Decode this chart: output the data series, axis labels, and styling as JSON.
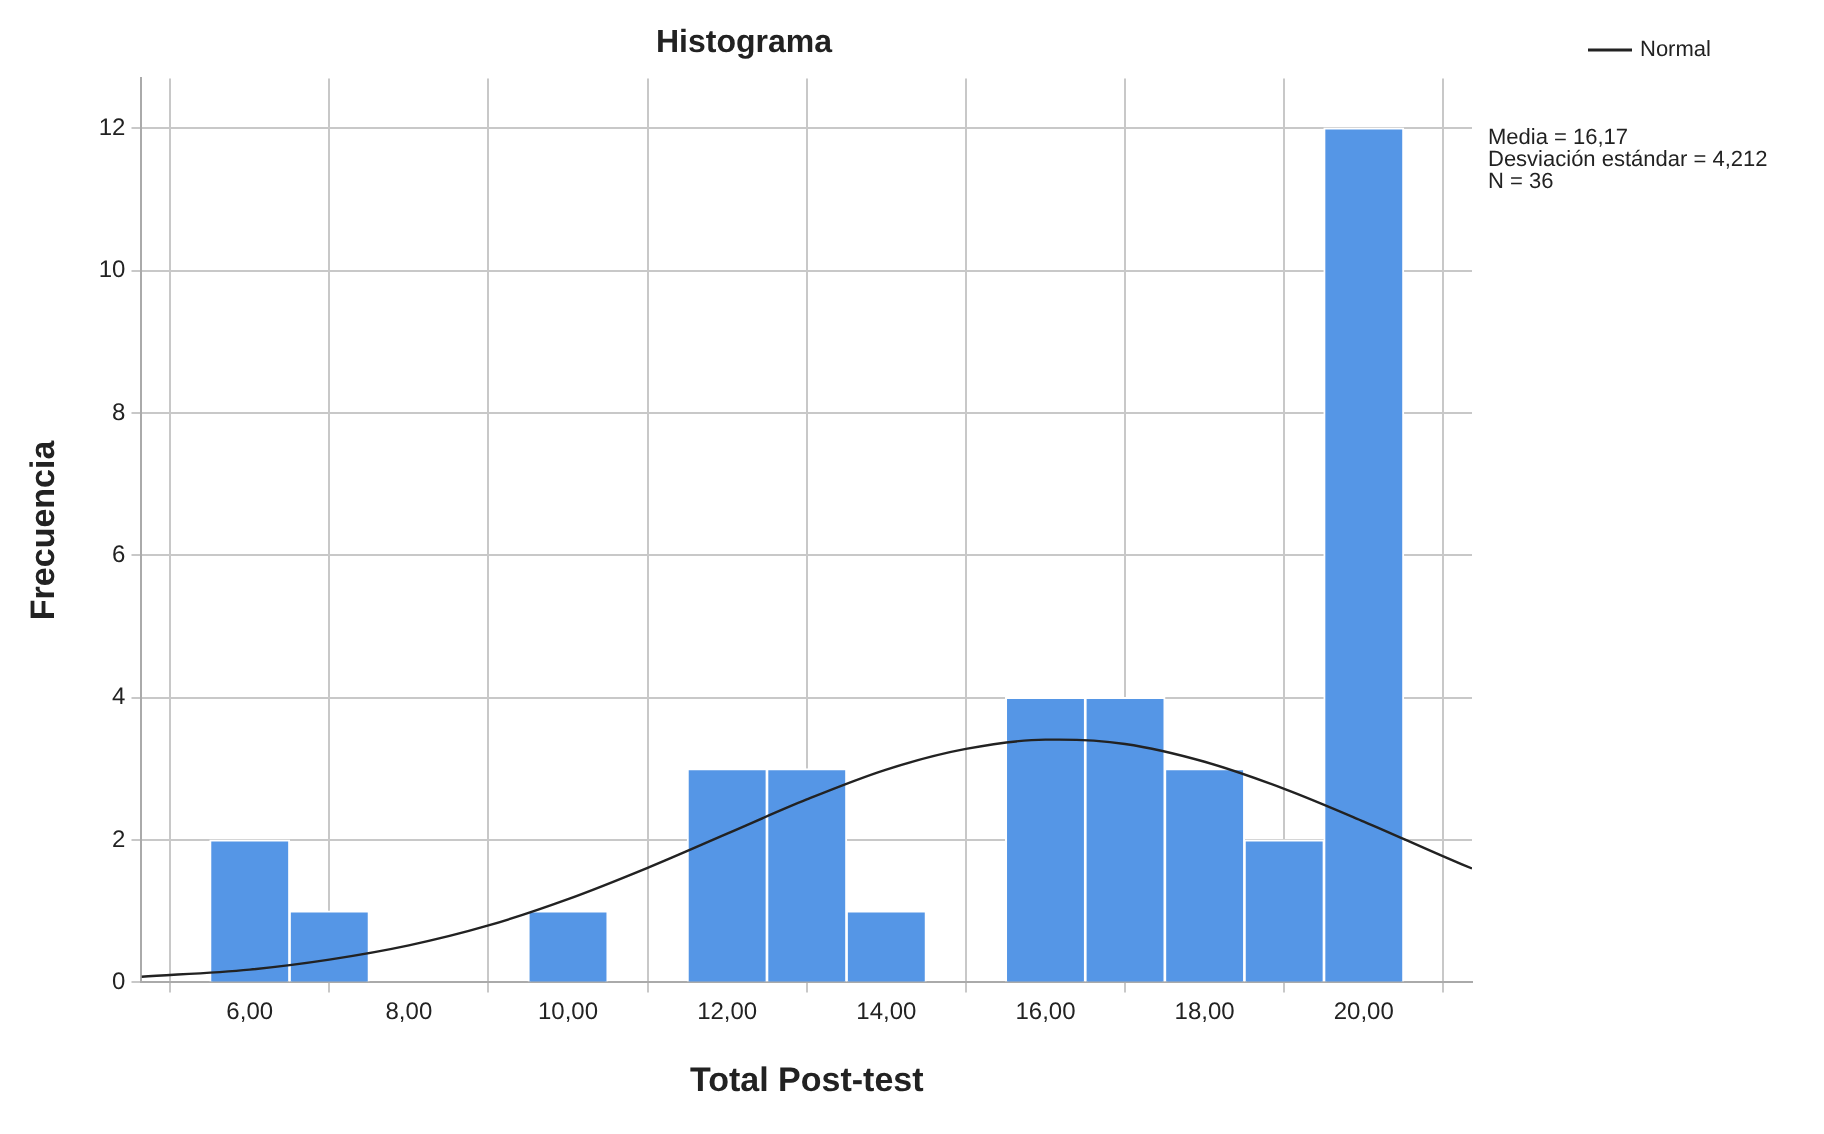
{
  "chart_data": {
    "type": "histogram",
    "title": "Histograma",
    "xlabel": "Total Post-test",
    "ylabel": "Frecuencia",
    "bins": [
      5.5,
      6.5,
      7.5,
      8.5,
      9.5,
      10.5,
      11.5,
      12.5,
      13.5,
      14.5,
      15.5,
      16.5,
      17.5,
      18.5,
      19.5,
      20.5
    ],
    "values": [
      2,
      1,
      0,
      0,
      1,
      0,
      3,
      3,
      1,
      0,
      4,
      4,
      3,
      2,
      12
    ],
    "color": "#5596e6",
    "series": [
      {
        "name": "Normal",
        "type": "line",
        "color": "#222222",
        "x": [
          4.64,
          6,
          7,
          8,
          9,
          10,
          11,
          12,
          13,
          14,
          15,
          16,
          16.17,
          17,
          18,
          19,
          20,
          21,
          21.36
        ],
        "values": [
          0.08,
          0.18,
          0.32,
          0.52,
          0.8,
          1.17,
          1.61,
          2.09,
          2.57,
          2.99,
          3.28,
          3.41,
          3.41,
          3.35,
          3.1,
          2.72,
          2.26,
          1.77,
          1.6
        ]
      }
    ],
    "xlim": [
      4.64,
      21.36
    ],
    "xticks": [
      {
        "value": 6,
        "label": "6,00"
      },
      {
        "value": 8,
        "label": "8,00"
      },
      {
        "value": 10,
        "label": "10,00"
      },
      {
        "value": 12,
        "label": "12,00"
      },
      {
        "value": 14,
        "label": "14,00"
      },
      {
        "value": 16,
        "label": "16,00"
      },
      {
        "value": 18,
        "label": "18,00"
      },
      {
        "value": 20,
        "label": "20,00"
      }
    ],
    "ylim": [
      0,
      12.7
    ],
    "yticks": [
      0,
      2,
      4,
      6,
      8,
      10,
      12
    ],
    "grid": true,
    "legend": "top right",
    "annotations": [
      "Media = 16,17",
      "Desviación estándar = 4,212",
      "N = 36"
    ]
  }
}
